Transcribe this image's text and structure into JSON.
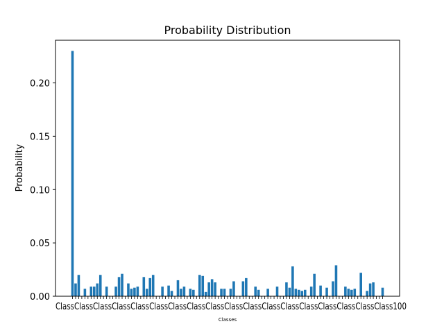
{
  "chart_data": {
    "type": "bar",
    "title": "Probability Distribution",
    "xlabel": "Classes",
    "ylabel": "Probability",
    "ylim": [
      0,
      0.24
    ],
    "yticks": [
      "0.00",
      "0.05",
      "0.10",
      "0.15",
      "0.20"
    ],
    "ytick_values": [
      0,
      0.05,
      0.1,
      0.15,
      0.2
    ],
    "xtick_text": "ClassClassClassClassClassClassClassClassClassClassClassClassClassClassClassClassClassClass100",
    "bar_color": "#1f77b4",
    "values": [
      0.23,
      0.012,
      0.02,
      0,
      0.007,
      0,
      0.009,
      0.009,
      0.012,
      0.02,
      0,
      0.009,
      0,
      0,
      0.009,
      0.018,
      0.021,
      0,
      0.012,
      0.007,
      0.008,
      0.009,
      0,
      0.018,
      0.007,
      0.017,
      0.02,
      0,
      0,
      0.009,
      0,
      0.01,
      0.005,
      0,
      0.015,
      0.007,
      0.009,
      0,
      0.007,
      0.006,
      0,
      0.02,
      0.019,
      0.004,
      0.013,
      0.016,
      0.013,
      0,
      0.007,
      0.007,
      0,
      0.007,
      0.014,
      0,
      0,
      0.014,
      0.017,
      0,
      0,
      0.009,
      0.006,
      0,
      0,
      0.007,
      0,
      0,
      0.009,
      0,
      0,
      0.013,
      0.008,
      0.028,
      0.007,
      0.006,
      0.005,
      0.006,
      0,
      0.009,
      0.021,
      0,
      0.01,
      0,
      0.008,
      0,
      0.014,
      0.029,
      0,
      0,
      0.009,
      0.007,
      0.006,
      0.007,
      0,
      0.022,
      0,
      0.005,
      0.012,
      0.013,
      0,
      0,
      0.008
    ]
  }
}
